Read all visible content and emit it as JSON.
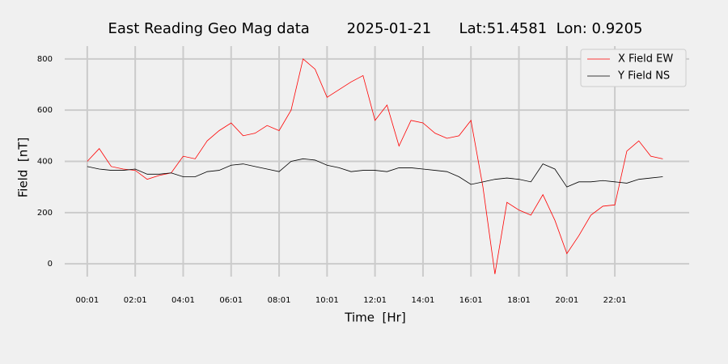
{
  "chart_data": {
    "type": "line",
    "title": "East Reading Geo Mag data        2025-01-21      Lat:51.4581  Lon: 0.9205",
    "xlabel": "Time  [Hr]",
    "ylabel": "Field  [nT]",
    "x": [
      0,
      0.5,
      1,
      1.5,
      2,
      2.5,
      3,
      3.5,
      4,
      4.5,
      5,
      5.5,
      6,
      6.5,
      7,
      7.5,
      8,
      8.5,
      9,
      9.5,
      10,
      10.5,
      11,
      11.5,
      12,
      12.5,
      13,
      13.5,
      14,
      14.5,
      15,
      15.5,
      16,
      16.5,
      17,
      17.5,
      18,
      18.5,
      19,
      19.5,
      20,
      20.5,
      21,
      21.5,
      22,
      22.5,
      23,
      23.5,
      24
    ],
    "series": [
      {
        "name": "X Field EW",
        "color": "#ff0000",
        "values": [
          400,
          450,
          380,
          370,
          365,
          330,
          345,
          355,
          420,
          410,
          480,
          520,
          550,
          500,
          510,
          540,
          520,
          600,
          800,
          760,
          650,
          680,
          710,
          735,
          560,
          620,
          460,
          560,
          550,
          510,
          490,
          500,
          560,
          300,
          -40,
          240,
          210,
          190,
          270,
          170,
          40,
          110,
          190,
          225,
          230,
          440,
          480,
          420,
          410
        ]
      },
      {
        "name": "Y Field NS",
        "color": "#000000",
        "values": [
          380,
          370,
          365,
          365,
          370,
          350,
          350,
          355,
          340,
          340,
          360,
          365,
          385,
          390,
          380,
          370,
          360,
          400,
          410,
          405,
          385,
          375,
          360,
          365,
          365,
          360,
          375,
          375,
          370,
          365,
          360,
          340,
          310,
          320,
          330,
          335,
          330,
          320,
          390,
          370,
          300,
          320,
          320,
          325,
          320,
          315,
          330,
          335,
          340
        ]
      }
    ],
    "xlim": [
      -0.94,
      25.1
    ],
    "xticks": [
      {
        "value": 0,
        "label": "00:01"
      },
      {
        "value": 2,
        "label": "02:01"
      },
      {
        "value": 4,
        "label": "04:01"
      },
      {
        "value": 6,
        "label": "06:01"
      },
      {
        "value": 8,
        "label": "08:01"
      },
      {
        "value": 10,
        "label": "10:01"
      },
      {
        "value": 12,
        "label": "12:01"
      },
      {
        "value": 14,
        "label": "14:01"
      },
      {
        "value": 16,
        "label": "16:01"
      },
      {
        "value": 18,
        "label": "18:01"
      },
      {
        "value": 20,
        "label": "20:01"
      },
      {
        "value": 22,
        "label": "22:01"
      }
    ],
    "ylim": [
      -50,
      850
    ],
    "yticks": [
      0,
      200,
      400,
      600,
      800
    ],
    "grid": true,
    "legend": "upper right"
  }
}
